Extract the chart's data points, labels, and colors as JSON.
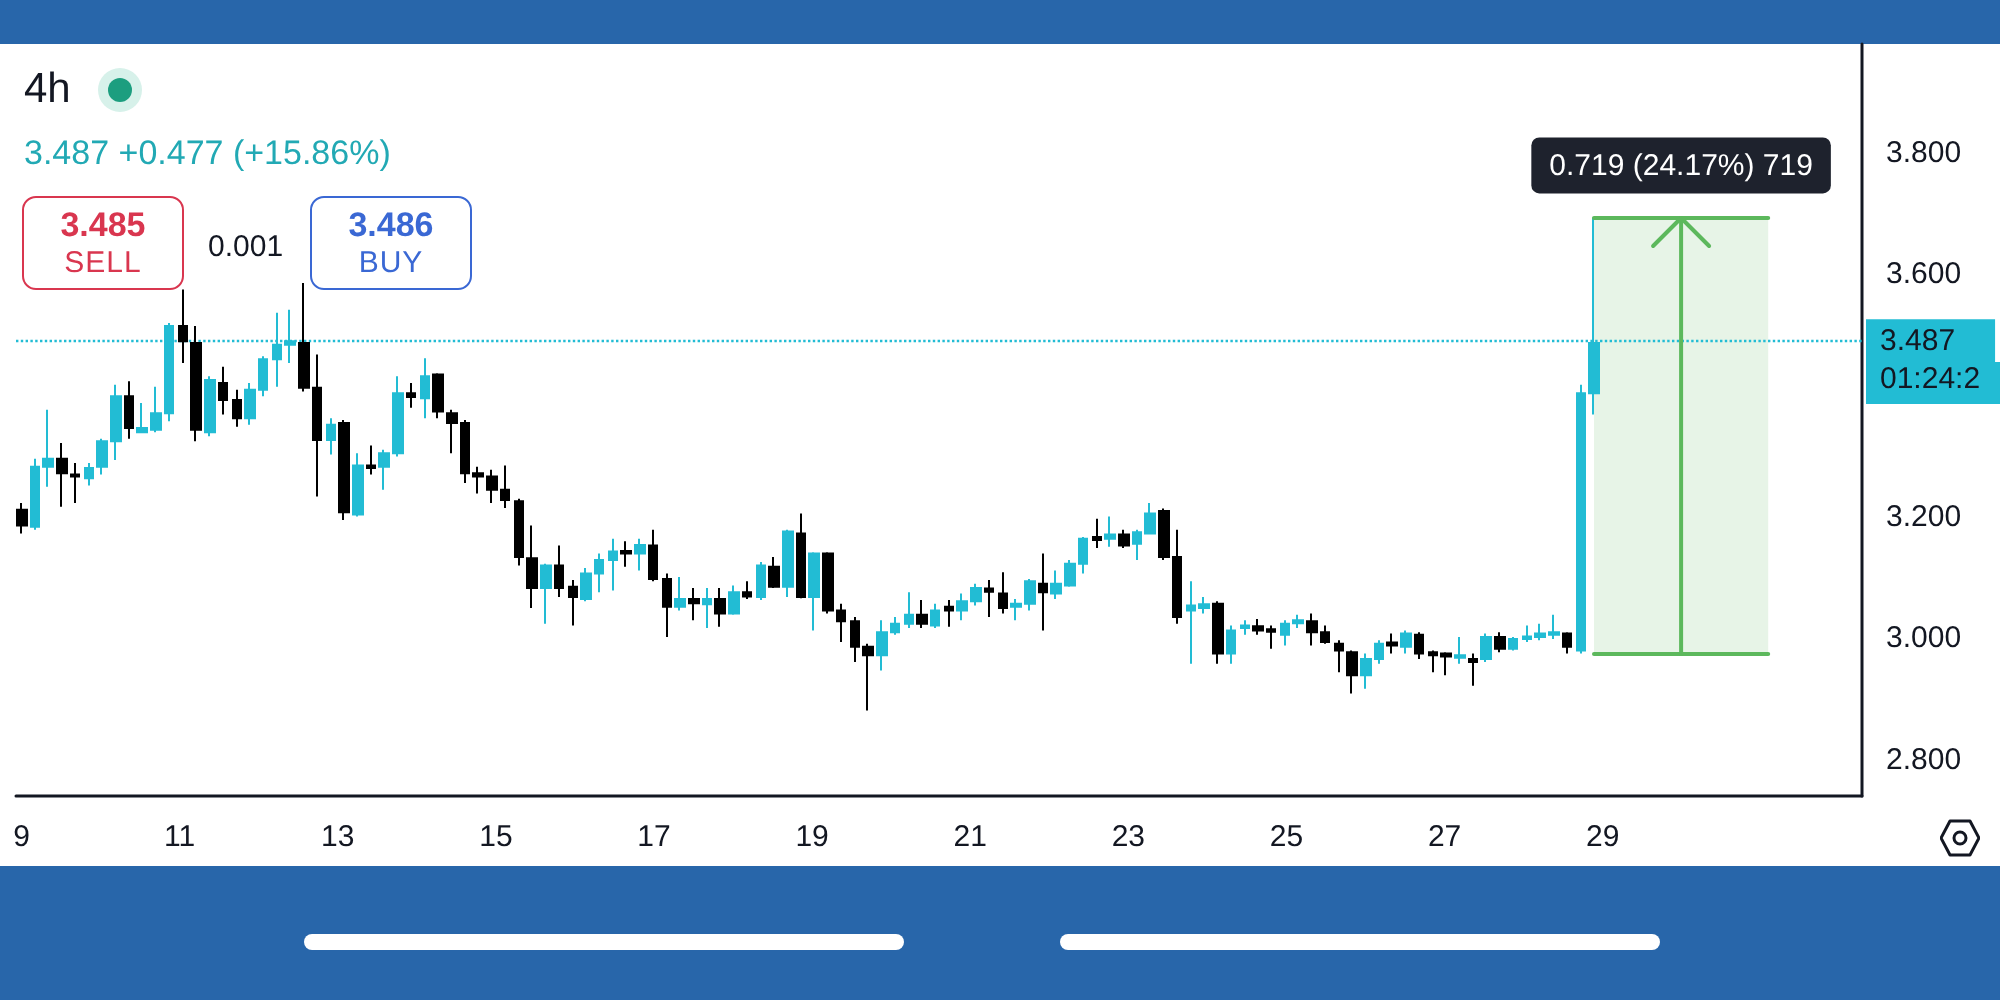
{
  "chart_data": {
    "type": "candlestick",
    "title": "4h",
    "subtitle": "3.487 +0.477 (+15.86%)",
    "x": [
      9.0,
      9.17,
      9.34,
      9.51,
      9.68,
      9.85,
      10.02,
      10.19,
      10.36,
      10.53,
      10.7,
      10.87,
      11.04,
      11.21,
      11.38,
      11.55,
      11.72,
      11.89,
      12.06,
      12.23,
      12.4,
      12.57,
      12.74,
      12.91,
      13.08,
      13.25,
      13.42,
      13.59,
      13.76,
      13.93,
      14.1,
      14.27,
      14.44,
      14.61,
      14.78,
      14.95,
      15.12,
      15.29,
      15.46,
      15.63,
      15.8,
      15.97,
      16.14,
      16.31,
      16.48,
      16.65,
      16.82,
      16.99,
      17.16,
      17.33,
      17.5,
      17.67,
      17.84,
      18.01,
      18.18,
      18.35,
      18.52,
      18.69,
      18.86,
      19.03,
      19.2,
      19.37,
      19.54,
      19.71,
      19.88,
      20.05,
      20.22,
      20.39,
      20.56,
      20.73,
      20.9,
      21.07,
      21.24,
      21.41,
      21.58,
      21.75,
      21.92,
      22.09,
      22.26,
      22.43,
      22.6,
      22.77,
      22.94,
      23.11,
      23.28,
      23.45,
      23.62,
      23.79,
      23.96,
      24.13,
      24.3,
      24.47,
      24.64,
      24.81,
      24.98,
      25.15,
      25.32,
      25.49,
      25.66,
      25.83,
      26.0,
      26.17,
      26.34,
      26.51,
      26.68,
      26.85,
      27.02,
      27.19,
      27.36,
      27.53,
      27.7,
      27.87,
      28.04,
      28.21,
      28.38,
      28.55,
      28.72,
      28.89
    ],
    "ohlc": [
      [
        3.212,
        3.223,
        3.173,
        3.186
      ],
      [
        3.184,
        3.296,
        3.179,
        3.283
      ],
      [
        3.283,
        3.377,
        3.25,
        3.296
      ],
      [
        3.296,
        3.322,
        3.217,
        3.272
      ],
      [
        3.27,
        3.289,
        3.223,
        3.267
      ],
      [
        3.264,
        3.289,
        3.252,
        3.281
      ],
      [
        3.283,
        3.329,
        3.27,
        3.325
      ],
      [
        3.325,
        3.418,
        3.294,
        3.399
      ],
      [
        3.399,
        3.424,
        3.329,
        3.347
      ],
      [
        3.34,
        3.388,
        3.338,
        3.347
      ],
      [
        3.344,
        3.415,
        3.34,
        3.371
      ],
      [
        3.371,
        3.52,
        3.358,
        3.515
      ],
      [
        3.515,
        3.575,
        3.454,
        3.49
      ],
      [
        3.487,
        3.515,
        3.325,
        3.344
      ],
      [
        3.34,
        3.432,
        3.333,
        3.426
      ],
      [
        3.421,
        3.448,
        3.369,
        3.393
      ],
      [
        3.393,
        3.41,
        3.349,
        3.363
      ],
      [
        3.363,
        3.421,
        3.352,
        3.41
      ],
      [
        3.41,
        3.465,
        3.399,
        3.46
      ],
      [
        3.46,
        3.537,
        3.415,
        3.484
      ],
      [
        3.484,
        3.542,
        3.454,
        3.49
      ],
      [
        3.487,
        3.586,
        3.407,
        3.413
      ],
      [
        3.413,
        3.468,
        3.234,
        3.327
      ],
      [
        3.327,
        3.363,
        3.303,
        3.352
      ],
      [
        3.355,
        3.36,
        3.195,
        3.208
      ],
      [
        3.204,
        3.305,
        3.201,
        3.285
      ],
      [
        3.285,
        3.318,
        3.27,
        3.281
      ],
      [
        3.283,
        3.311,
        3.245,
        3.305
      ],
      [
        3.305,
        3.432,
        3.3,
        3.404
      ],
      [
        3.404,
        3.421,
        3.38,
        3.398
      ],
      [
        3.396,
        3.462,
        3.363,
        3.432
      ],
      [
        3.435,
        3.437,
        3.363,
        3.374
      ],
      [
        3.371,
        3.377,
        3.305,
        3.355
      ],
      [
        3.355,
        3.36,
        3.256,
        3.272
      ],
      [
        3.272,
        3.283,
        3.239,
        3.267
      ],
      [
        3.267,
        3.278,
        3.223,
        3.245
      ],
      [
        3.245,
        3.285,
        3.215,
        3.228
      ],
      [
        3.226,
        3.23,
        3.12,
        3.134
      ],
      [
        3.132,
        3.186,
        3.05,
        3.083
      ],
      [
        3.083,
        3.123,
        3.024,
        3.12
      ],
      [
        3.12,
        3.153,
        3.068,
        3.083
      ],
      [
        3.085,
        3.096,
        3.021,
        3.068
      ],
      [
        3.065,
        3.116,
        3.061,
        3.107
      ],
      [
        3.107,
        3.14,
        3.076,
        3.129
      ],
      [
        3.129,
        3.164,
        3.079,
        3.143
      ],
      [
        3.144,
        3.16,
        3.118,
        3.14
      ],
      [
        3.14,
        3.164,
        3.112,
        3.154
      ],
      [
        3.153,
        3.179,
        3.094,
        3.098
      ],
      [
        3.098,
        3.107,
        3.002,
        3.052
      ],
      [
        3.052,
        3.101,
        3.046,
        3.065
      ],
      [
        3.065,
        3.083,
        3.03,
        3.058
      ],
      [
        3.056,
        3.083,
        3.017,
        3.065
      ],
      [
        3.065,
        3.083,
        3.019,
        3.041
      ],
      [
        3.041,
        3.087,
        3.039,
        3.076
      ],
      [
        3.076,
        3.094,
        3.065,
        3.069
      ],
      [
        3.068,
        3.126,
        3.063,
        3.12
      ],
      [
        3.118,
        3.134,
        3.083,
        3.085
      ],
      [
        3.085,
        3.179,
        3.068,
        3.176
      ],
      [
        3.173,
        3.206,
        3.066,
        3.068
      ],
      [
        3.068,
        3.142,
        3.013,
        3.14
      ],
      [
        3.14,
        3.142,
        3.041,
        3.046
      ],
      [
        3.046,
        3.057,
        2.994,
        3.028
      ],
      [
        3.028,
        3.035,
        2.961,
        2.986
      ],
      [
        2.986,
        2.991,
        2.881,
        2.972
      ],
      [
        2.972,
        3.03,
        2.947,
        3.01
      ],
      [
        3.01,
        3.035,
        3.006,
        3.024
      ],
      [
        3.024,
        3.076,
        3.017,
        3.039
      ],
      [
        3.039,
        3.063,
        3.017,
        3.024
      ],
      [
        3.021,
        3.057,
        3.017,
        3.046
      ],
      [
        3.052,
        3.063,
        3.019,
        3.046
      ],
      [
        3.046,
        3.074,
        3.03,
        3.061
      ],
      [
        3.061,
        3.09,
        3.054,
        3.083
      ],
      [
        3.082,
        3.096,
        3.035,
        3.077
      ],
      [
        3.074,
        3.109,
        3.041,
        3.05
      ],
      [
        3.052,
        3.065,
        3.03,
        3.057
      ],
      [
        3.057,
        3.098,
        3.046,
        3.094
      ],
      [
        3.09,
        3.14,
        3.013,
        3.076
      ],
      [
        3.074,
        3.112,
        3.065,
        3.09
      ],
      [
        3.087,
        3.129,
        3.085,
        3.123
      ],
      [
        3.123,
        3.167,
        3.107,
        3.164
      ],
      [
        3.167,
        3.197,
        3.149,
        3.162
      ],
      [
        3.164,
        3.201,
        3.151,
        3.171
      ],
      [
        3.171,
        3.179,
        3.149,
        3.153
      ],
      [
        3.156,
        3.179,
        3.129,
        3.175
      ],
      [
        3.173,
        3.223,
        3.171,
        3.206
      ],
      [
        3.21,
        3.214,
        3.129,
        3.134
      ],
      [
        3.134,
        3.179,
        3.024,
        3.035
      ],
      [
        3.046,
        3.094,
        2.958,
        3.054
      ],
      [
        3.05,
        3.068,
        3.041,
        3.056
      ],
      [
        3.057,
        3.061,
        2.958,
        2.975
      ],
      [
        2.975,
        3.021,
        2.958,
        3.013
      ],
      [
        3.017,
        3.03,
        3.006,
        3.021
      ],
      [
        3.02,
        3.032,
        3.006,
        3.013
      ],
      [
        3.015,
        3.021,
        2.983,
        3.011
      ],
      [
        3.006,
        3.03,
        2.988,
        3.024
      ],
      [
        3.025,
        3.039,
        3.017,
        3.03
      ],
      [
        3.028,
        3.041,
        2.988,
        3.01
      ],
      [
        3.01,
        3.021,
        2.991,
        2.994
      ],
      [
        2.991,
        2.997,
        2.944,
        2.98
      ],
      [
        2.977,
        2.98,
        2.909,
        2.939
      ],
      [
        2.939,
        2.975,
        2.917,
        2.966
      ],
      [
        2.966,
        2.997,
        2.958,
        2.991
      ],
      [
        2.993,
        3.008,
        2.975,
        2.988
      ],
      [
        2.986,
        3.013,
        2.975,
        3.008
      ],
      [
        3.006,
        3.01,
        2.966,
        2.975
      ],
      [
        2.977,
        2.98,
        2.944,
        2.972
      ],
      [
        2.975,
        2.977,
        2.939,
        2.97
      ],
      [
        2.968,
        3.002,
        2.958,
        2.972
      ],
      [
        2.966,
        2.975,
        2.922,
        2.961
      ],
      [
        2.966,
        3.008,
        2.961,
        3.002
      ],
      [
        3.002,
        3.01,
        2.977,
        2.983
      ],
      [
        2.983,
        3.002,
        2.98,
        2.999
      ],
      [
        2.999,
        3.021,
        2.994,
        3.003
      ],
      [
        3.002,
        3.024,
        2.997,
        3.008
      ],
      [
        3.006,
        3.039,
        2.999,
        3.01
      ],
      [
        3.008,
        3.01,
        2.975,
        2.986
      ],
      [
        2.98,
        3.418,
        2.975,
        3.404
      ],
      [
        3.404,
        3.694,
        3.369,
        3.487
      ]
    ],
    "colors": [
      "#000000",
      "#22bcd4",
      "#22bcd4",
      "#000000",
      "#000000",
      "#22bcd4",
      "#22bcd4",
      "#22bcd4",
      "#000000",
      "#22bcd4",
      "#22bcd4",
      "#22bcd4",
      "#000000",
      "#000000",
      "#22bcd4",
      "#000000",
      "#000000",
      "#22bcd4",
      "#22bcd4",
      "#22bcd4",
      "#22bcd4",
      "#000000",
      "#000000",
      "#22bcd4",
      "#000000",
      "#22bcd4",
      "#000000",
      "#22bcd4",
      "#22bcd4",
      "#000000",
      "#22bcd4",
      "#000000",
      "#000000",
      "#000000",
      "#000000",
      "#000000",
      "#000000",
      "#000000",
      "#000000",
      "#22bcd4",
      "#000000",
      "#000000",
      "#22bcd4",
      "#22bcd4",
      "#22bcd4",
      "#000000",
      "#22bcd4",
      "#000000",
      "#000000",
      "#22bcd4",
      "#000000",
      "#22bcd4",
      "#000000",
      "#22bcd4",
      "#000000",
      "#22bcd4",
      "#000000",
      "#22bcd4",
      "#000000",
      "#22bcd4",
      "#000000",
      "#000000",
      "#000000",
      "#000000",
      "#22bcd4",
      "#22bcd4",
      "#22bcd4",
      "#000000",
      "#22bcd4",
      "#000000",
      "#22bcd4",
      "#22bcd4",
      "#000000",
      "#000000",
      "#22bcd4",
      "#22bcd4",
      "#000000",
      "#22bcd4",
      "#22bcd4",
      "#22bcd4",
      "#000000",
      "#22bcd4",
      "#000000",
      "#22bcd4",
      "#22bcd4",
      "#000000",
      "#000000",
      "#22bcd4",
      "#22bcd4",
      "#000000",
      "#22bcd4",
      "#22bcd4",
      "#000000",
      "#000000",
      "#22bcd4",
      "#22bcd4",
      "#000000",
      "#000000",
      "#000000",
      "#000000",
      "#22bcd4",
      "#22bcd4",
      "#000000",
      "#22bcd4",
      "#000000",
      "#000000",
      "#000000",
      "#22bcd4",
      "#000000",
      "#22bcd4",
      "#000000",
      "#22bcd4",
      "#22bcd4",
      "#22bcd4",
      "#22bcd4",
      "#000000",
      "#22bcd4",
      "#22bcd4"
    ],
    "xlim": [
      8.93,
      32.28
    ],
    "xticks": [
      9,
      11,
      13,
      15,
      17,
      19,
      21,
      23,
      25,
      27,
      29
    ],
    "ylim": [
      2.74,
      3.98
    ],
    "yticks": [
      {
        "value": 2.8,
        "label": "2.800"
      },
      {
        "value": 3.0,
        "label": "3.000"
      },
      {
        "value": 3.2,
        "label": "3.200"
      },
      {
        "value": 3.6,
        "label": "3.600"
      },
      {
        "value": 3.8,
        "label": "3.800"
      }
    ],
    "ref_lines": [
      {
        "axis": "y",
        "value": 3.487,
        "label": "3.487",
        "color": "#22bcd4",
        "line_style": "dotted"
      }
    ],
    "bands": [
      {
        "axis": "y",
        "from": 2.975,
        "to": 3.694,
        "label": "0.719 (24.17%) 719",
        "color": "#5cb85c"
      }
    ],
    "annotations": [
      "3.485",
      "SELL",
      "0.001",
      "3.486",
      "BUY",
      "01:24:2"
    ]
  }
}
